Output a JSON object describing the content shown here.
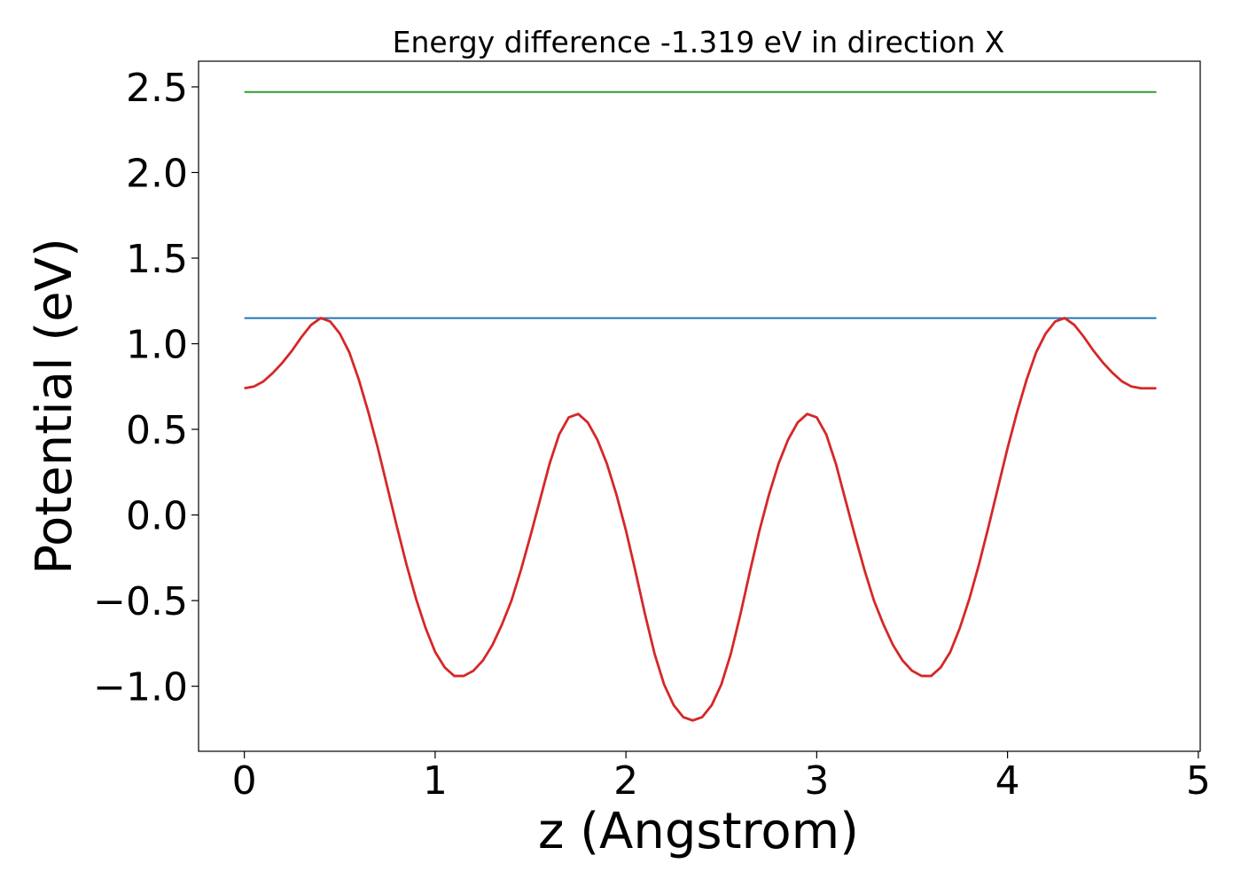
{
  "chart_data": {
    "type": "line",
    "title": "Energy difference -1.319 eV in direction X",
    "xlabel": "z (Angstrom)",
    "ylabel": "Potential (eV)",
    "xlim": [
      -0.24,
      5.01
    ],
    "ylim": [
      -1.38,
      2.65
    ],
    "xticks": [
      0,
      1,
      2,
      3,
      4,
      5
    ],
    "xtick_labels": [
      "0",
      "1",
      "2",
      "3",
      "4",
      "5"
    ],
    "yticks": [
      -1.0,
      -0.5,
      0.0,
      0.5,
      1.0,
      1.5,
      2.0,
      2.5
    ],
    "ytick_labels": [
      "−1.0",
      "−0.5",
      "0.0",
      "0.5",
      "1.0",
      "1.5",
      "2.0",
      "2.5"
    ],
    "grid": false,
    "series": [
      {
        "color": "#2ca02c",
        "x": [
          0,
          4.78
        ],
        "y": [
          2.47,
          2.47
        ]
      },
      {
        "color": "#1f77b4",
        "x": [
          0,
          4.78
        ],
        "y": [
          1.15,
          1.15
        ]
      },
      {
        "color": "#d62728",
        "x": [
          0.0,
          0.05,
          0.1,
          0.15,
          0.2,
          0.25,
          0.3,
          0.35,
          0.4,
          0.45,
          0.5,
          0.55,
          0.6,
          0.65,
          0.7,
          0.75,
          0.8,
          0.85,
          0.9,
          0.95,
          1.0,
          1.05,
          1.1,
          1.15,
          1.2,
          1.25,
          1.3,
          1.35,
          1.4,
          1.45,
          1.5,
          1.55,
          1.6,
          1.65,
          1.7,
          1.75,
          1.8,
          1.85,
          1.9,
          1.95,
          2.0,
          2.05,
          2.1,
          2.15,
          2.2,
          2.25,
          2.3,
          2.35,
          2.4,
          2.45,
          2.5,
          2.55,
          2.6,
          2.65,
          2.7,
          2.75,
          2.8,
          2.85,
          2.9,
          2.95,
          3.0,
          3.05,
          3.1,
          3.15,
          3.2,
          3.25,
          3.3,
          3.35,
          3.4,
          3.45,
          3.5,
          3.55,
          3.6,
          3.65,
          3.7,
          3.75,
          3.8,
          3.85,
          3.9,
          3.95,
          4.0,
          4.05,
          4.1,
          4.15,
          4.2,
          4.25,
          4.3,
          4.35,
          4.4,
          4.45,
          4.5,
          4.55,
          4.6,
          4.65,
          4.7,
          4.75,
          4.78
        ],
        "y": [
          0.74,
          0.75,
          0.78,
          0.83,
          0.89,
          0.96,
          1.04,
          1.11,
          1.15,
          1.13,
          1.06,
          0.95,
          0.79,
          0.6,
          0.39,
          0.16,
          -0.07,
          -0.29,
          -0.49,
          -0.66,
          -0.8,
          -0.89,
          -0.94,
          -0.94,
          -0.91,
          -0.85,
          -0.76,
          -0.64,
          -0.5,
          -0.32,
          -0.12,
          0.09,
          0.3,
          0.47,
          0.57,
          0.59,
          0.54,
          0.44,
          0.3,
          0.12,
          -0.09,
          -0.33,
          -0.58,
          -0.81,
          -0.99,
          -1.11,
          -1.18,
          -1.2,
          -1.18,
          -1.11,
          -0.99,
          -0.81,
          -0.58,
          -0.33,
          -0.09,
          0.12,
          0.3,
          0.44,
          0.54,
          0.59,
          0.57,
          0.47,
          0.3,
          0.09,
          -0.12,
          -0.32,
          -0.5,
          -0.64,
          -0.76,
          -0.85,
          -0.91,
          -0.94,
          -0.94,
          -0.89,
          -0.8,
          -0.66,
          -0.49,
          -0.29,
          -0.07,
          0.16,
          0.39,
          0.6,
          0.79,
          0.95,
          1.06,
          1.13,
          1.15,
          1.11,
          1.04,
          0.96,
          0.89,
          0.83,
          0.78,
          0.75,
          0.74,
          0.74,
          0.74
        ]
      }
    ]
  }
}
